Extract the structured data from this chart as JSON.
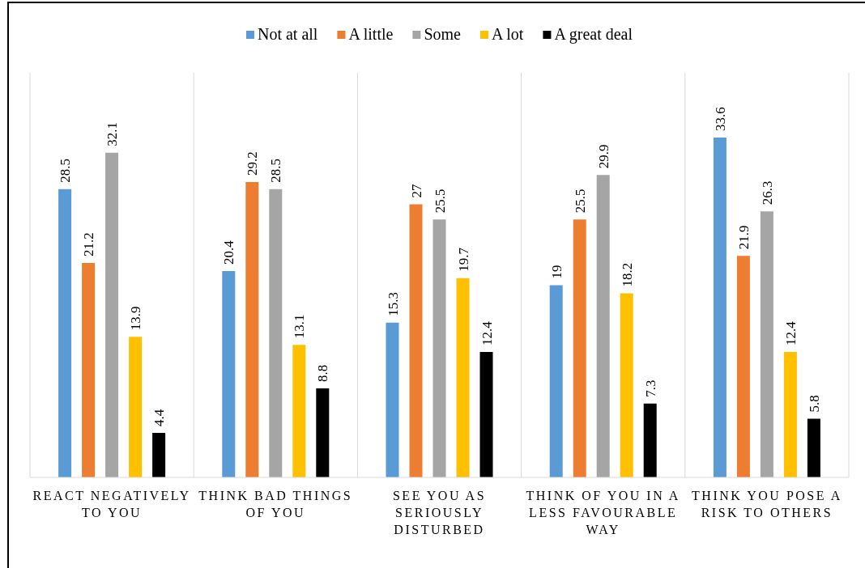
{
  "chart_data": {
    "type": "bar",
    "categories": [
      "REACT NEGATIVELY TO YOU",
      "THINK BAD THINGS OF YOU",
      "SEE YOU AS SERIOUSLY DISTURBED",
      "THINK OF YOU IN A LESS FAVOURABLE WAY",
      "THINK YOU POSE A RISK TO OTHERS"
    ],
    "series": [
      {
        "name": "Not at all",
        "color": "#5b9bd5",
        "values": [
          28.5,
          20.4,
          15.3,
          19,
          33.6
        ]
      },
      {
        "name": "A little",
        "color": "#ed7d31",
        "values": [
          21.2,
          29.2,
          27,
          25.5,
          21.9
        ]
      },
      {
        "name": "Some",
        "color": "#a5a5a5",
        "values": [
          32.1,
          28.5,
          25.5,
          29.9,
          26.3
        ]
      },
      {
        "name": "A lot",
        "color": "#ffc000",
        "values": [
          13.9,
          13.1,
          19.7,
          18.2,
          12.4
        ]
      },
      {
        "name": "A great deal",
        "color": "#000000",
        "values": [
          4.4,
          8.8,
          12.4,
          7.3,
          5.8
        ]
      }
    ],
    "ylim": [
      0,
      40
    ],
    "data_labels": true,
    "grid": "x",
    "legend": "top",
    "tick_labels": "x"
  }
}
